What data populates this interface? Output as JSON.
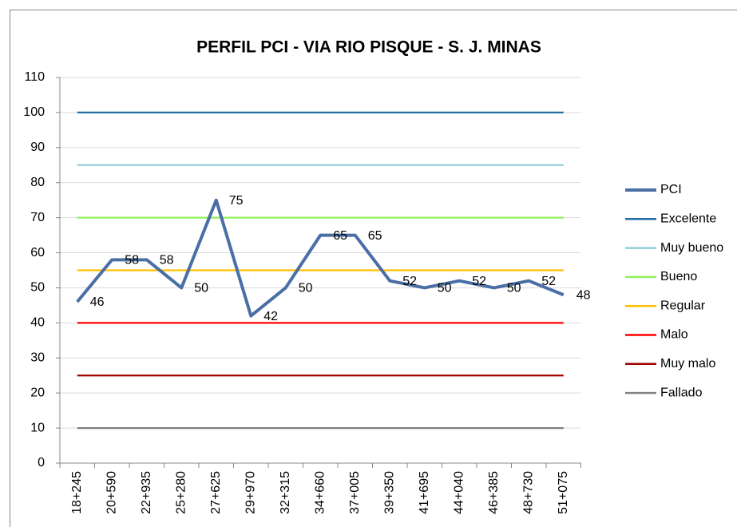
{
  "chart_data": {
    "type": "line",
    "title": "PERFIL PCI - VIA RIO PISQUE - S. J. MINAS",
    "categories": [
      "18+245",
      "20+590",
      "22+935",
      "25+280",
      "27+625",
      "29+970",
      "32+315",
      "34+660",
      "37+005",
      "39+350",
      "41+695",
      "44+040",
      "46+385",
      "48+730",
      "51+075"
    ],
    "series": [
      {
        "name": "PCI",
        "color": "#4a6fa5",
        "values": [
          46,
          58,
          58,
          50,
          75,
          42,
          50,
          65,
          65,
          52,
          50,
          52,
          50,
          52,
          48
        ],
        "data_labels": true
      },
      {
        "name": "Excelente",
        "color": "#1f6ea8",
        "values": [
          100,
          100,
          100,
          100,
          100,
          100,
          100,
          100,
          100,
          100,
          100,
          100,
          100,
          100,
          100
        ]
      },
      {
        "name": "Muy bueno",
        "color": "#92cddc",
        "values": [
          85,
          85,
          85,
          85,
          85,
          85,
          85,
          85,
          85,
          85,
          85,
          85,
          85,
          85,
          85
        ]
      },
      {
        "name": "Bueno",
        "color": "#92f05a",
        "values": [
          70,
          70,
          70,
          70,
          70,
          70,
          70,
          70,
          70,
          70,
          70,
          70,
          70,
          70,
          70
        ]
      },
      {
        "name": "Regular",
        "color": "#ffc000",
        "values": [
          55,
          55,
          55,
          55,
          55,
          55,
          55,
          55,
          55,
          55,
          55,
          55,
          55,
          55,
          55
        ]
      },
      {
        "name": "Malo",
        "color": "#ff0000",
        "values": [
          40,
          40,
          40,
          40,
          40,
          40,
          40,
          40,
          40,
          40,
          40,
          40,
          40,
          40,
          40
        ]
      },
      {
        "name": "Muy malo",
        "color": "#a00000",
        "values": [
          25,
          25,
          25,
          25,
          25,
          25,
          25,
          25,
          25,
          25,
          25,
          25,
          25,
          25,
          25
        ]
      },
      {
        "name": "Fallado",
        "color": "#808080",
        "values": [
          10,
          10,
          10,
          10,
          10,
          10,
          10,
          10,
          10,
          10,
          10,
          10,
          10,
          10,
          10
        ]
      }
    ],
    "ylim": [
      0,
      110
    ],
    "yticks": [
      0,
      10,
      20,
      30,
      40,
      50,
      60,
      70,
      80,
      90,
      100,
      110
    ],
    "grid": true,
    "legend": "right"
  }
}
